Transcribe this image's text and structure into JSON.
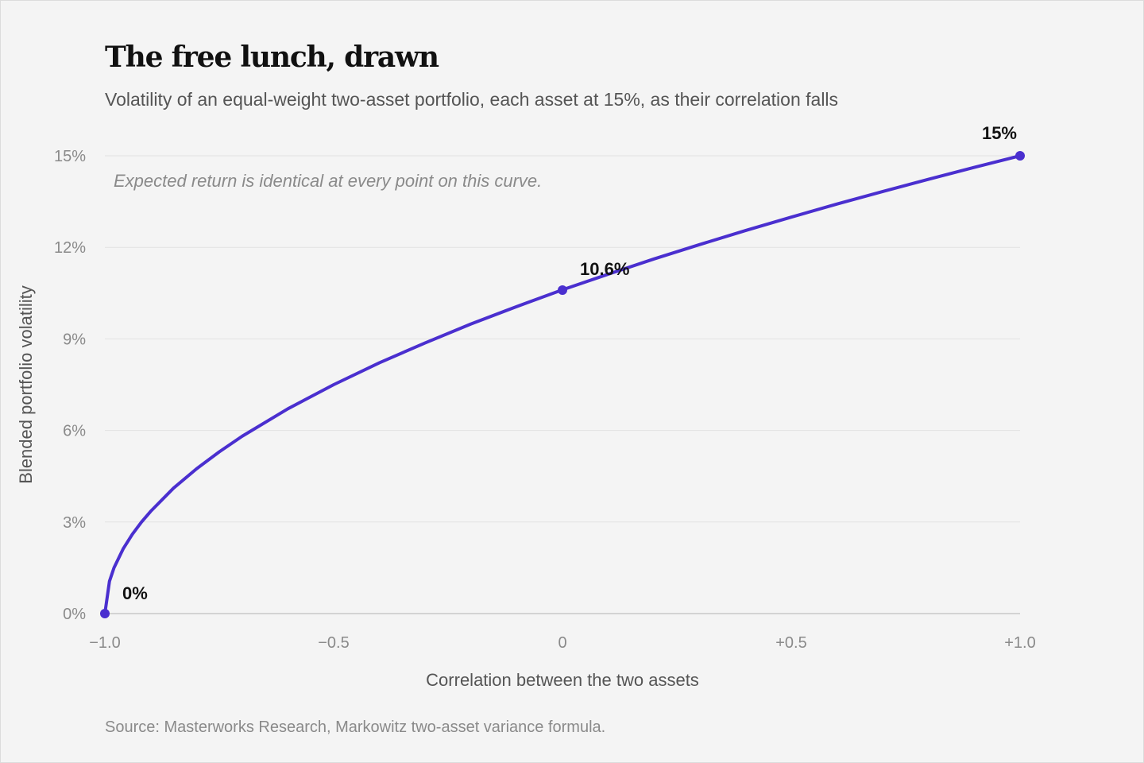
{
  "title": "The free lunch, drawn",
  "subtitle": "Volatility of an equal-weight two-asset portfolio, each asset at 15%, as their correlation falls",
  "source": "Source: Masterworks Research, Markowitz two-asset variance formula.",
  "chart_data": {
    "type": "line",
    "xlabel": "Correlation between the two assets",
    "ylabel": "Blended portfolio volatility",
    "xlim": [
      -1.0,
      1.0
    ],
    "ylim": [
      0,
      15
    ],
    "x_ticks": [
      {
        "value": -1.0,
        "label": "−1.0"
      },
      {
        "value": -0.5,
        "label": "−0.5"
      },
      {
        "value": 0,
        "label": "0"
      },
      {
        "value": 0.5,
        "label": "+0.5"
      },
      {
        "value": 1.0,
        "label": "+1.0"
      }
    ],
    "y_ticks": [
      {
        "value": 0,
        "label": "0%"
      },
      {
        "value": 3,
        "label": "3%"
      },
      {
        "value": 6,
        "label": "6%"
      },
      {
        "value": 9,
        "label": "9%"
      },
      {
        "value": 12,
        "label": "12%"
      },
      {
        "value": 15,
        "label": "15%"
      }
    ],
    "grid": "horizontal",
    "series": [
      {
        "color": "#4a2fcf",
        "x": [
          -1.0,
          -0.99,
          -0.98,
          -0.96,
          -0.94,
          -0.92,
          -0.9,
          -0.85,
          -0.8,
          -0.75,
          -0.7,
          -0.6,
          -0.5,
          -0.4,
          -0.3,
          -0.2,
          -0.1,
          0.0,
          0.1,
          0.2,
          0.3,
          0.4,
          0.5,
          0.6,
          0.7,
          0.8,
          0.9,
          1.0
        ],
        "values": [
          0,
          1.06,
          1.5,
          2.12,
          2.6,
          3.0,
          3.35,
          4.11,
          4.74,
          5.3,
          5.81,
          6.71,
          7.5,
          8.22,
          8.87,
          9.49,
          10.06,
          10.61,
          11.12,
          11.62,
          12.09,
          12.55,
          12.99,
          13.42,
          13.83,
          14.23,
          14.62,
          15.0
        ]
      }
    ],
    "highlighted_points": [
      {
        "x": -1.0,
        "y": 0,
        "label": "0%"
      },
      {
        "x": 0,
        "y": 10.6,
        "label": "10.6%"
      },
      {
        "x": 1.0,
        "y": 15,
        "label": "15%"
      }
    ],
    "annotation": "Expected return is identical at every point on this curve."
  }
}
